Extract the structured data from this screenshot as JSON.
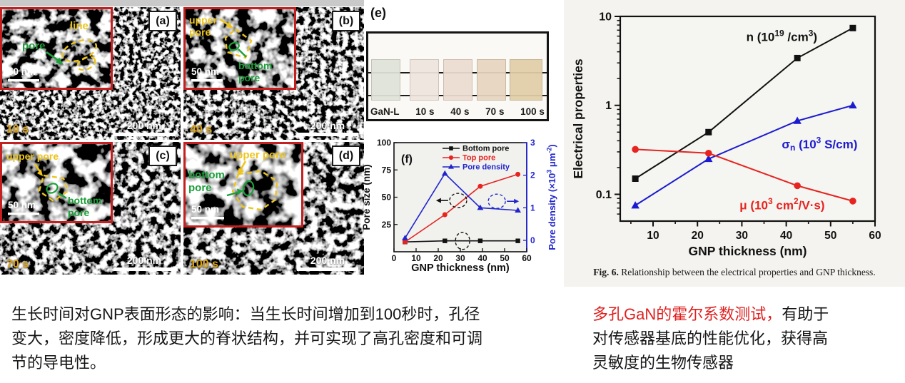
{
  "sem_panels": [
    {
      "label": "(a)",
      "time": "10 s",
      "scale_main": "200 nm",
      "scale_inset": "50 nm",
      "yellow_lines": [
        "line"
      ],
      "green_lines": [
        "pore"
      ]
    },
    {
      "label": "(b)",
      "time": "40 s",
      "scale_main": "200 nm",
      "scale_inset": "50 nm",
      "yellow_lines": [
        "upper",
        "pore"
      ],
      "green_lines": [
        "bottom",
        "pore"
      ]
    },
    {
      "label": "(c)",
      "time": "70 s",
      "scale_main": "200 nm",
      "scale_inset": "50 nm",
      "yellow_lines": [
        "upper pore"
      ],
      "green_lines": [
        "bottom",
        "pore"
      ]
    },
    {
      "label": "(d)",
      "time": "100 s",
      "scale_main": "200 nm",
      "scale_inset": "50 nm",
      "yellow_lines": [
        "upper pore"
      ],
      "green_lines": [
        "bottom",
        "pore"
      ]
    }
  ],
  "photo_panel": {
    "label": "(e)",
    "samples": [
      "GaN-L",
      "10 s",
      "40 s",
      "70 s",
      "100 s"
    ],
    "sample_colors": [
      "#dfe3d9",
      "#efe5de",
      "#eddcd2",
      "#e7d5c0",
      "#e2cda7"
    ]
  },
  "chart_data": [
    {
      "id": "pore-chart",
      "type": "line",
      "panel_label": "(f)",
      "x": [
        5,
        23,
        39,
        56
      ],
      "series": [
        {
          "name": "Bottom pore",
          "color": "#111111",
          "marker": "square",
          "axis": "left",
          "values": [
            9,
            10,
            10,
            10
          ]
        },
        {
          "name": "Top pore",
          "color": "#e62420",
          "marker": "circle",
          "axis": "left",
          "values": [
            9,
            34,
            60,
            71
          ]
        },
        {
          "name": "Pore density",
          "color": "#2126cc",
          "marker": "triangle",
          "axis": "right",
          "values": [
            0.07,
            2.05,
            1.0,
            0.92
          ]
        }
      ],
      "xlabel": "GNP thickness (nm)",
      "ylabel_left": "Pore size (nm)",
      "ylabel_right": "Pore density (×10³ μm⁻²)",
      "xlim": [
        0,
        60
      ],
      "xticks": [
        0,
        10,
        20,
        30,
        40,
        50,
        60
      ],
      "ylim_left": [
        0,
        100
      ],
      "yticks_left": [
        25,
        50,
        75,
        100
      ],
      "ylim_right": [
        -0.35,
        3.0
      ],
      "yticks_right": [
        0,
        1,
        2,
        3
      ],
      "legend_position": "top-right",
      "grid": false,
      "annotations": [
        {
          "axis": "left",
          "x": 29,
          "y": 47,
          "dir": "left",
          "color": "#111111",
          "rx": 12,
          "ry": 10
        },
        {
          "axis": "right",
          "x": 46.5,
          "y": 1.2,
          "dir": "right",
          "color": "#2126cc",
          "rx": 12,
          "ry": 10
        },
        {
          "axis": "left",
          "x": 31,
          "y": 10,
          "dir": "left",
          "color": "#111111",
          "rx": 10,
          "ry": 12
        }
      ]
    },
    {
      "id": "elec-chart",
      "type": "line",
      "yscale": "log",
      "x": [
        6,
        22.5,
        42.5,
        55
      ],
      "series": [
        {
          "name": "n (10¹⁹ /cm³)",
          "color": "#111111",
          "marker": "square",
          "values": [
            0.15,
            0.5,
            3.4,
            7.4
          ],
          "label_at": [
            31,
            5.3
          ]
        },
        {
          "name": "σₙ (10³ S/cm)",
          "color": "#1b1bd0",
          "marker": "triangle",
          "values": [
            0.075,
            0.25,
            0.67,
            1.0
          ],
          "label_at": [
            39,
            0.33
          ]
        },
        {
          "name": "μ (10³ cm²/V·s)",
          "color": "#e62420",
          "marker": "circle",
          "values": [
            0.32,
            0.29,
            0.125,
            0.084
          ],
          "label_at": [
            29.5,
            0.068
          ]
        }
      ],
      "xlabel": "GNP thickness (nm)",
      "ylabel": "Electrical properties",
      "xlim": [
        2.6,
        60
      ],
      "xticks": [
        10,
        20,
        30,
        40,
        50,
        60
      ],
      "ylim": [
        0.05,
        10
      ],
      "yticks": [
        0.1,
        1,
        10
      ],
      "grid": false
    }
  ],
  "captions": {
    "fig6_bold": "Fig. 6.",
    "fig6_rest": " Relationship between the electrical properties and GNP thickness."
  },
  "text_blocks": {
    "left": "生长时间对GNP表面形态的影响：当生长时间增加到100秒时，孔径变大，密度降低，形成更大的脊状结构，并可实现了高孔密度和可调节的导电性。",
    "right_red": "多孔GaN的霍尔系数测试，",
    "right_black": "有助于对传感器基底的性能优化，获得高灵敏度的生物传感器"
  }
}
